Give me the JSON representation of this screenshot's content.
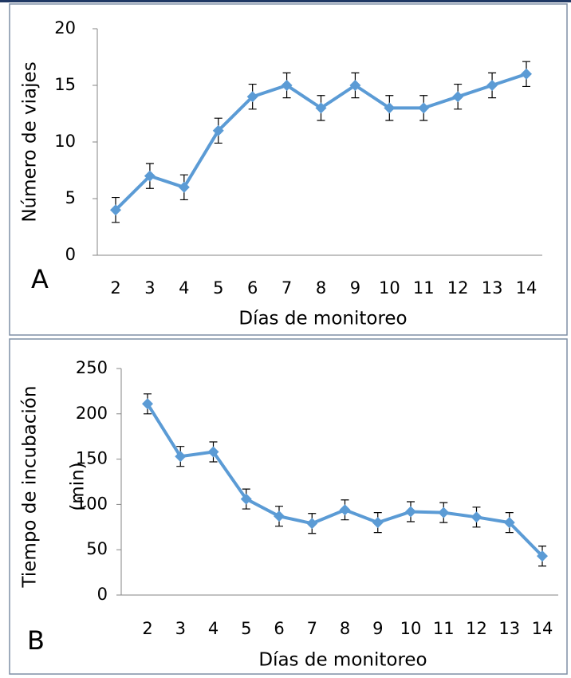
{
  "chart_data": [
    {
      "type": "line",
      "panel_label": "A",
      "xlabel": "Días de monitoreo",
      "ylabel": [
        "Número de viajes"
      ],
      "categories": [
        "2",
        "3",
        "4",
        "5",
        "6",
        "7",
        "8",
        "9",
        "10",
        "11",
        "12",
        "13",
        "14"
      ],
      "series": [
        {
          "color": "#5b9bd5",
          "values": [
            4,
            7,
            6,
            11,
            14,
            15,
            13,
            15,
            13,
            13,
            14,
            15,
            16
          ],
          "errors": [
            1.1,
            1.1,
            1.1,
            1.1,
            1.1,
            1.1,
            1.1,
            1.1,
            1.1,
            1.1,
            1.1,
            1.1,
            1.1
          ]
        }
      ],
      "ylim": [
        0,
        20
      ],
      "yticks": [
        0,
        5,
        10,
        15,
        20
      ],
      "grid": false
    },
    {
      "type": "line",
      "panel_label": "B",
      "xlabel": "Días de monitoreo",
      "ylabel": [
        "Tiempo de incubación",
        "(min)"
      ],
      "categories": [
        "2",
        "3",
        "4",
        "5",
        "6",
        "7",
        "8",
        "9",
        "10",
        "11",
        "12",
        "13",
        "14"
      ],
      "series": [
        {
          "color": "#5b9bd5",
          "values": [
            211,
            153,
            158,
            106,
            87,
            79,
            94,
            80,
            92,
            91,
            86,
            80,
            43
          ],
          "errors": [
            11,
            11,
            11,
            11,
            11,
            11,
            11,
            11,
            11,
            11,
            11,
            11,
            11
          ]
        }
      ],
      "ylim": [
        0,
        250
      ],
      "yticks": [
        0,
        50,
        100,
        150,
        200,
        250
      ],
      "grid": false
    }
  ]
}
